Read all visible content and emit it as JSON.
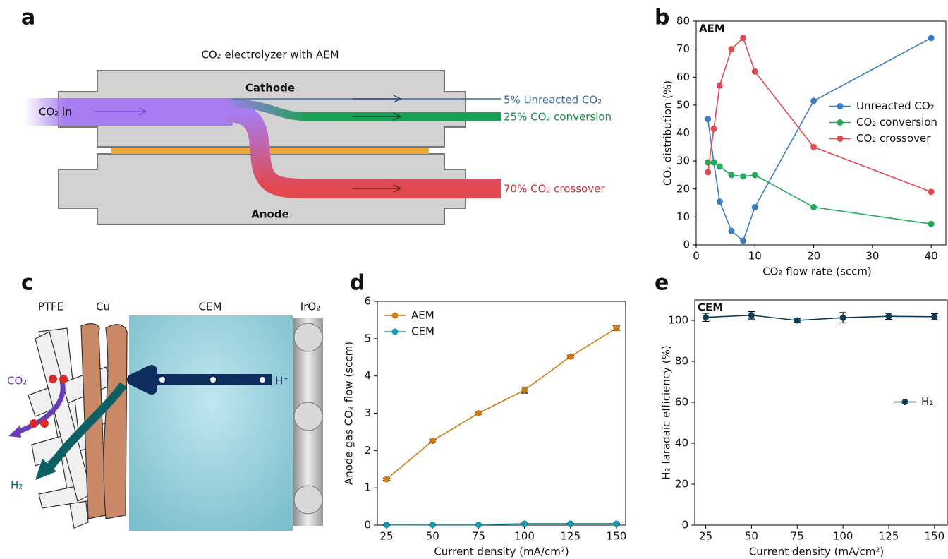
{
  "panel_labels": [
    "a",
    "b",
    "c",
    "d",
    "e"
  ],
  "diagram_a": {
    "title": "CO₂ electrolyzer with AEM",
    "cathode": "Cathode",
    "anode": "Anode",
    "inlet": "CO₂ in",
    "outlets": [
      "5% Unreacted CO₂",
      "25% CO₂ conversion",
      "70% CO₂ crossover"
    ]
  },
  "diagram_c": {
    "labels": [
      "PTFE",
      "Cu",
      "CEM",
      "IrO₂"
    ],
    "reactant": "CO₂",
    "proton": "H⁺",
    "product": "H₂"
  },
  "chart_data": [
    {
      "type": "line",
      "annotation": "AEM",
      "x_label": "CO₂ flow rate (sccm)",
      "y_label": "CO₂ distribution (%)",
      "x": [
        2,
        3,
        4,
        6,
        8,
        10,
        20,
        40
      ],
      "series": [
        {
          "name": "Unreacted CO₂",
          "color": "#3b7dc4",
          "values": [
            45,
            29.5,
            15.5,
            5,
            1.5,
            13.5,
            51.5,
            74
          ]
        },
        {
          "name": "CO₂ conversion",
          "color": "#22ab5c",
          "values": [
            29.5,
            29.5,
            28,
            25,
            24.5,
            25,
            13.5,
            7.5
          ]
        },
        {
          "name": "CO₂ crossover",
          "color": "#e0494f",
          "values": [
            26,
            41.5,
            57,
            70,
            74,
            62,
            35,
            19
          ]
        }
      ],
      "xlim": [
        0,
        42.5
      ],
      "ylim": [
        0,
        80
      ],
      "xticks": [
        0,
        10,
        20,
        30,
        40
      ],
      "yticks": [
        0,
        10,
        20,
        30,
        40,
        50,
        60,
        70,
        80
      ],
      "legend": "center right"
    },
    {
      "type": "line",
      "x_label": "Current density (mA/cm²)",
      "y_label": "Anode gas CO₂ flow (sccm)",
      "x": [
        25,
        50,
        75,
        100,
        125,
        150
      ],
      "series": [
        {
          "name": "AEM",
          "color": "#cc7a14",
          "values": [
            1.23,
            2.26,
            3.0,
            3.62,
            4.52,
            5.28
          ],
          "errors": [
            0.03,
            0.03,
            0.03,
            0.08,
            0.03,
            0.06
          ]
        },
        {
          "name": "CEM",
          "color": "#1a9aaa",
          "values": [
            0.005,
            0.01,
            0.01,
            0.04,
            0.04,
            0.04
          ],
          "errors": [
            0.01,
            0.01,
            0.01,
            0.01,
            0.01,
            0.01
          ]
        }
      ],
      "xlim": [
        20,
        155
      ],
      "ylim": [
        0,
        6
      ],
      "xticks": [
        25,
        50,
        75,
        100,
        125,
        150
      ],
      "yticks": [
        0,
        1,
        2,
        3,
        4,
        5,
        6
      ],
      "legend": "upper left"
    },
    {
      "type": "line",
      "annotation": "CEM",
      "x_label": "Current density (mA/cm²)",
      "y_label": "H₂ faradaic efficiency (%)",
      "x": [
        25,
        50,
        75,
        100,
        125,
        150
      ],
      "series": [
        {
          "name": "H₂",
          "color": "#0d3c55",
          "values": [
            101.5,
            102.5,
            100,
            101.3,
            102,
            101.8
          ],
          "errors": [
            2,
            1.8,
            1,
            2.5,
            1.5,
            1.5
          ]
        }
      ],
      "xlim": [
        19,
        157
      ],
      "ylim": [
        0,
        110
      ],
      "xticks": [
        25,
        50,
        75,
        100,
        125,
        150
      ],
      "yticks": [
        0,
        20,
        40,
        60,
        80,
        100
      ],
      "legend": "center right"
    }
  ]
}
